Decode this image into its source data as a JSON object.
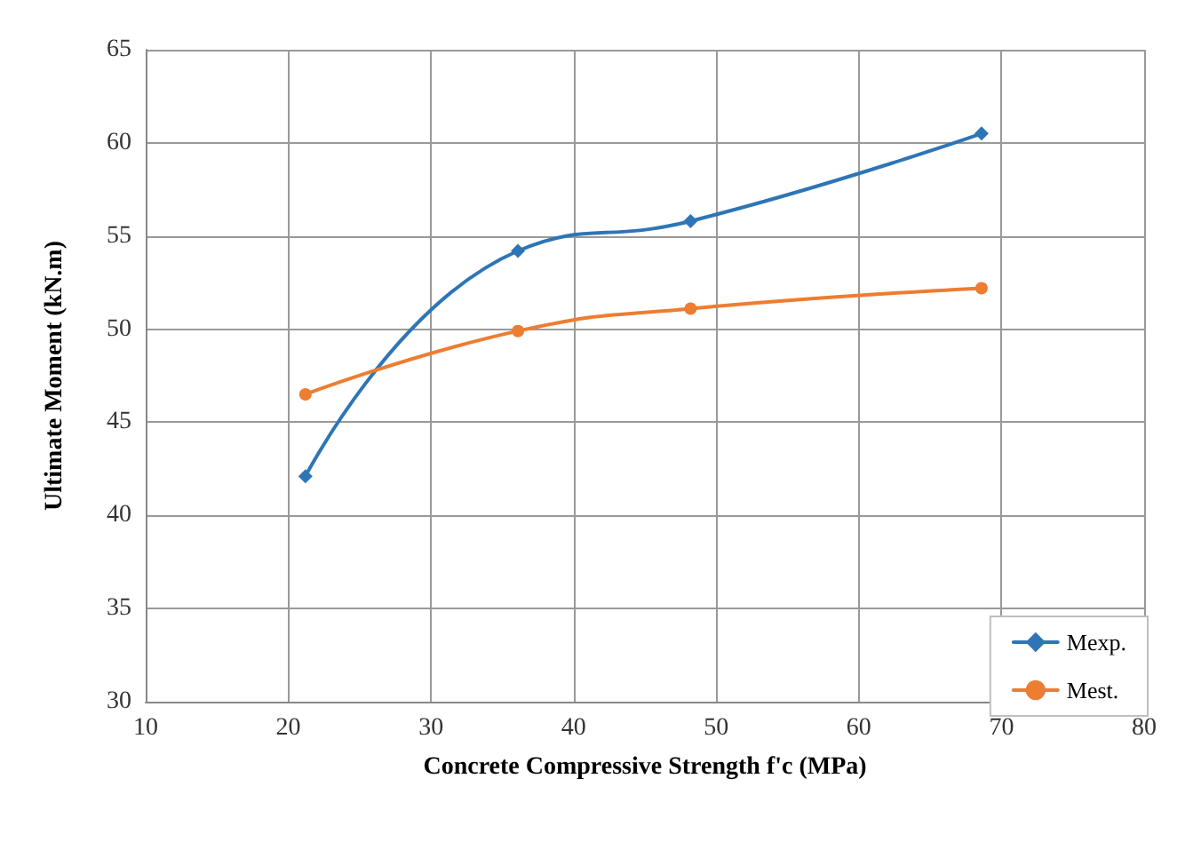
{
  "chart_data": {
    "type": "line",
    "xlabel": "Concrete Compressive Strength f'c (MPa)",
    "ylabel": "Ultimate Moment (kN.m)",
    "x": [
      21.2,
      36.1,
      48.2,
      68.6
    ],
    "series": [
      {
        "name": "Mexp.",
        "color": "#2e75b6",
        "values": [
          42.1,
          54.2,
          55.8,
          60.5
        ],
        "marker": "diamond"
      },
      {
        "name": "Mest.",
        "color": "#ed7d31",
        "values": [
          46.5,
          49.9,
          51.1,
          52.2
        ],
        "marker": "circle"
      }
    ],
    "xlim": [
      10,
      80
    ],
    "xticks": [
      10,
      20,
      30,
      40,
      50,
      60,
      70,
      80
    ],
    "ylim": [
      30,
      65
    ],
    "yticks": [
      30,
      35,
      40,
      45,
      50,
      55,
      60,
      65
    ],
    "grid": true,
    "legend": "bottom right",
    "line_style": "solid"
  }
}
